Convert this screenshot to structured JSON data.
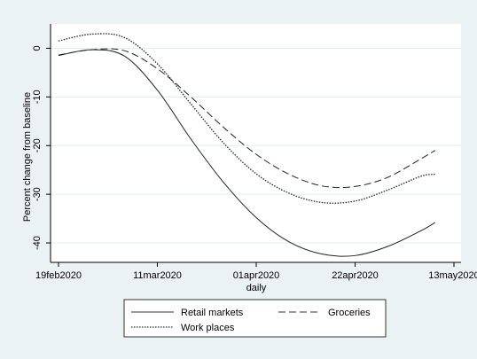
{
  "chart_data": {
    "type": "line",
    "title": "",
    "xlabel": "daily",
    "ylabel": "Percent change from baseline",
    "x_ticks": [
      "19feb2020",
      "11mar2020",
      "01apr2020",
      "22apr2020",
      "13may2020"
    ],
    "y_ticks": [
      0,
      -10,
      -20,
      -30,
      -40
    ],
    "x_range": [
      "2020-02-19",
      "2020-05-13"
    ],
    "ylim": [
      -44,
      5
    ],
    "grid": true,
    "legend_position": "bottom",
    "x": [
      "2020-02-19",
      "2020-02-26",
      "2020-03-04",
      "2020-03-11",
      "2020-03-18",
      "2020-03-25",
      "2020-04-01",
      "2020-04-08",
      "2020-04-15",
      "2020-04-22",
      "2020-04-29",
      "2020-05-06",
      "2020-05-09"
    ],
    "series": [
      {
        "name": "Retail markets",
        "style": "solid",
        "values": [
          -1.5,
          -0.3,
          -1.6,
          -8.6,
          -18.5,
          -27.5,
          -34.8,
          -39.8,
          -42.3,
          -42.6,
          -40.7,
          -37.5,
          -35.8
        ]
      },
      {
        "name": "Groceries",
        "style": "dashed",
        "values": [
          -1.4,
          -0.3,
          -0.5,
          -4.2,
          -9.9,
          -16.2,
          -21.8,
          -25.9,
          -28.3,
          -28.4,
          -26.5,
          -22.7,
          -21.0
        ]
      },
      {
        "name": "Work places",
        "style": "dotted",
        "values": [
          1.5,
          2.9,
          2.2,
          -3.2,
          -11.3,
          -19.4,
          -25.8,
          -29.8,
          -31.7,
          -31.4,
          -29.1,
          -26.3,
          -25.9
        ]
      }
    ]
  }
}
